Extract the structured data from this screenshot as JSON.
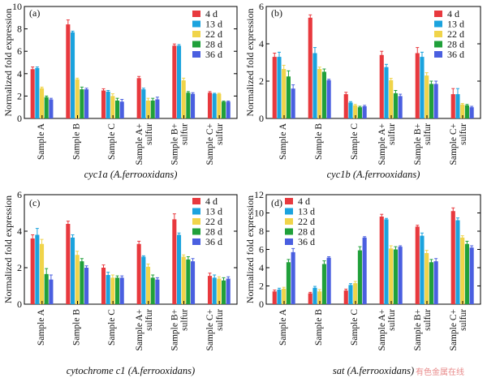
{
  "legend": {
    "entries": [
      "4 d",
      "13 d",
      "22 d",
      "28 d",
      "36 d"
    ],
    "colors": [
      "#e8393e",
      "#1ba3de",
      "#f0d44a",
      "#20a03a",
      "#4a5fe0"
    ]
  },
  "watermark": "有色金属在线",
  "chart_data": [
    {
      "type": "bar",
      "panel_letter": "(a)",
      "ylabel": "Normalized fold expression",
      "ylim": [
        0,
        10
      ],
      "yticks": [
        0,
        2,
        4,
        6,
        8,
        10
      ],
      "categories": [
        [
          "Sample A"
        ],
        [
          "Sample B"
        ],
        [
          "Sample C"
        ],
        [
          "Sample A+",
          "sulfur"
        ],
        [
          "Sample B+",
          "sulfur"
        ],
        [
          "Sample C+",
          "sulfur"
        ]
      ],
      "caption": {
        "gene": "cyc1a",
        "organism": "A.ferrooxidans"
      },
      "series": [
        {
          "name": "4 d",
          "values": [
            4.4,
            8.4,
            2.5,
            3.6,
            6.5,
            2.3
          ],
          "errors": [
            0.2,
            0.4,
            0.15,
            0.15,
            0.15,
            0.1
          ]
        },
        {
          "name": "13 d",
          "values": [
            4.5,
            7.7,
            2.4,
            2.6,
            6.5,
            2.2
          ],
          "errors": [
            0.1,
            0.1,
            0.1,
            0.1,
            0.1,
            0.05
          ]
        },
        {
          "name": "22 d",
          "values": [
            2.7,
            3.5,
            2.0,
            1.6,
            3.4,
            2.2
          ],
          "errors": [
            0.1,
            0.1,
            0.2,
            0.2,
            0.2,
            0.05
          ]
        },
        {
          "name": "28 d",
          "values": [
            1.9,
            2.6,
            1.6,
            1.6,
            2.3,
            1.5
          ],
          "errors": [
            0.1,
            0.2,
            0.2,
            0.2,
            0.1,
            0.05
          ]
        },
        {
          "name": "36 d",
          "values": [
            1.7,
            2.6,
            1.5,
            1.7,
            2.2,
            1.5
          ],
          "errors": [
            0.1,
            0.1,
            0.2,
            0.2,
            0.1,
            0.05
          ]
        }
      ]
    },
    {
      "type": "bar",
      "panel_letter": "(b)",
      "ylabel": "Normalized fold expression",
      "ylim": [
        0,
        6
      ],
      "yticks": [
        0,
        2,
        4,
        6
      ],
      "categories": [
        [
          "Sample A"
        ],
        [
          "Sample B"
        ],
        [
          "Sample C"
        ],
        [
          "Sample A+",
          "sulfur"
        ],
        [
          "Sample B+",
          "sulfur"
        ],
        [
          "Sample C+",
          "sulfur"
        ]
      ],
      "caption": {
        "gene": "cyc1b",
        "organism": "A.ferrooxidans"
      },
      "series": [
        {
          "name": "4 d",
          "values": [
            3.3,
            5.4,
            1.3,
            3.4,
            3.5,
            1.3
          ],
          "errors": [
            0.2,
            0.15,
            0.1,
            0.2,
            0.3,
            0.3
          ]
        },
        {
          "name": "13 d",
          "values": [
            3.3,
            3.5,
            0.85,
            2.75,
            3.3,
            1.3
          ],
          "errors": [
            0.25,
            0.3,
            0.05,
            0.15,
            0.25,
            0.3
          ]
        },
        {
          "name": "22 d",
          "values": [
            2.65,
            2.65,
            0.7,
            2.05,
            2.3,
            0.75
          ],
          "errors": [
            0.2,
            0.1,
            0.05,
            0.1,
            0.15,
            0.05
          ]
        },
        {
          "name": "28 d",
          "values": [
            2.25,
            2.5,
            0.6,
            1.35,
            1.85,
            0.7
          ],
          "errors": [
            0.3,
            0.15,
            0.05,
            0.15,
            0.15,
            0.05
          ]
        },
        {
          "name": "36 d",
          "values": [
            1.6,
            2.05,
            0.65,
            1.2,
            1.85,
            0.6
          ],
          "errors": [
            0.2,
            0.05,
            0.05,
            0.1,
            0.15,
            0.05
          ]
        }
      ]
    },
    {
      "type": "bar",
      "panel_letter": "(c)",
      "ylabel": "Normalized fold expression",
      "ylim": [
        0,
        6
      ],
      "yticks": [
        0,
        2,
        4,
        6
      ],
      "categories": [
        [
          "Sample A"
        ],
        [
          "Sample B"
        ],
        [
          "Sample C"
        ],
        [
          "Sample A+",
          "sulfur"
        ],
        [
          "Sample B+",
          "sulfur"
        ],
        [
          "Sample C+",
          "sulfur"
        ]
      ],
      "caption": {
        "gene": "cytochrome c1",
        "organism": "A.ferrooxidans"
      },
      "series": [
        {
          "name": "4 d",
          "values": [
            3.6,
            4.4,
            2.0,
            3.3,
            4.65,
            1.55
          ],
          "errors": [
            0.2,
            0.15,
            0.15,
            0.15,
            0.3,
            0.15
          ]
        },
        {
          "name": "13 d",
          "values": [
            3.8,
            3.65,
            1.6,
            2.6,
            3.8,
            1.45
          ],
          "errors": [
            0.35,
            0.15,
            0.15,
            0.05,
            0.1,
            0.15
          ]
        },
        {
          "name": "22 d",
          "values": [
            3.3,
            2.7,
            1.45,
            2.05,
            2.6,
            1.4
          ],
          "errors": [
            0.25,
            0.2,
            0.15,
            0.15,
            0.1,
            0.1
          ]
        },
        {
          "name": "28 d",
          "values": [
            1.65,
            2.35,
            1.45,
            1.45,
            2.45,
            1.3
          ],
          "errors": [
            0.3,
            0.15,
            0.1,
            0.15,
            0.15,
            0.15
          ]
        },
        {
          "name": "36 d",
          "values": [
            1.35,
            2.0,
            1.45,
            1.35,
            2.35,
            1.4
          ],
          "errors": [
            0.25,
            0.1,
            0.1,
            0.1,
            0.15,
            0.1
          ]
        }
      ]
    },
    {
      "type": "bar",
      "panel_letter": "(d)",
      "ylabel": "Normalized fold expression",
      "ylim": [
        0,
        12
      ],
      "yticks": [
        0,
        2,
        4,
        6,
        8,
        10,
        12
      ],
      "categories": [
        [
          "Sample A"
        ],
        [
          "Sample B"
        ],
        [
          "Sample C"
        ],
        [
          "Sample A+",
          "sulfur"
        ],
        [
          "Sample B+",
          "sulfur"
        ],
        [
          "Sample C+",
          "sulfur"
        ]
      ],
      "caption": {
        "gene": "sat",
        "organism": "A.ferrooxidans"
      },
      "series": [
        {
          "name": "4 d",
          "values": [
            1.4,
            1.2,
            1.5,
            9.6,
            8.5,
            10.2
          ],
          "errors": [
            0.15,
            0.1,
            0.15,
            0.25,
            0.15,
            0.35
          ]
        },
        {
          "name": "13 d",
          "values": [
            1.6,
            1.8,
            2.1,
            9.3,
            7.5,
            9.2
          ],
          "errors": [
            0.15,
            0.15,
            0.15,
            0.1,
            0.3,
            0.25
          ]
        },
        {
          "name": "22 d",
          "values": [
            1.7,
            1.4,
            2.3,
            6.1,
            5.6,
            7.3
          ],
          "errors": [
            0.15,
            0.2,
            0.2,
            0.3,
            0.3,
            0.2
          ]
        },
        {
          "name": "28 d",
          "values": [
            4.6,
            4.4,
            5.9,
            6.0,
            4.6,
            6.6
          ],
          "errors": [
            0.3,
            0.35,
            0.4,
            0.3,
            0.3,
            0.3
          ]
        },
        {
          "name": "36 d",
          "values": [
            5.7,
            5.1,
            7.3,
            6.3,
            4.7,
            6.2
          ],
          "errors": [
            0.4,
            0.1,
            0.1,
            0.1,
            0.3,
            0.2
          ]
        }
      ]
    }
  ]
}
